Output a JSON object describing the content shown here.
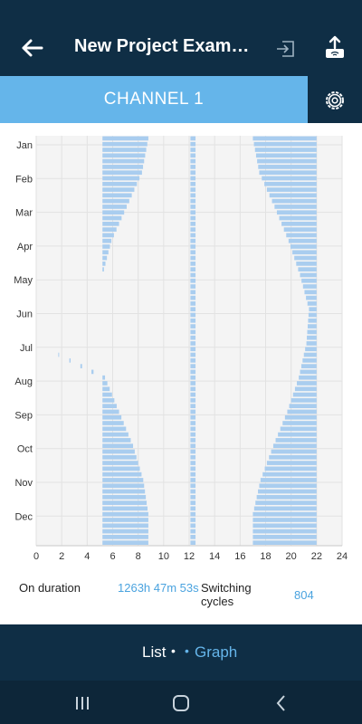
{
  "app": {
    "title": "New Project Exam…",
    "channel_label": "CHANNEL 1",
    "icons": {
      "back": "back-arrow-icon",
      "export": "export-icon",
      "upload": "upload-icon",
      "settings": "gear-icon"
    },
    "colors": {
      "dark": "#0f2e45",
      "accent": "#65b5ea",
      "bar": "#a9cdef"
    }
  },
  "chart_data": {
    "type": "bar",
    "orientation": "horizontal",
    "title": "",
    "xlabel": "",
    "ylabel": "",
    "xlim": [
      0,
      24
    ],
    "xticks": [
      0,
      2,
      4,
      6,
      8,
      10,
      12,
      14,
      16,
      18,
      20,
      22,
      24
    ],
    "categories": [
      "Jan",
      "Feb",
      "Mar",
      "Apr",
      "May",
      "Jun",
      "Jul",
      "Aug",
      "Sep",
      "Oct",
      "Nov",
      "Dec"
    ],
    "grid": true,
    "series": [
      {
        "start_hours": [
          5.2,
          5.2,
          5.2,
          5.2,
          5.2,
          0,
          0,
          5.2,
          5.2,
          5.2,
          5.2,
          5.2
        ],
        "end_hours": [
          8.8,
          8.3,
          7.1,
          5.9,
          5.2,
          0,
          0,
          5.4,
          6.5,
          7.6,
          8.4,
          8.8
        ]
      },
      {
        "start_hours": [
          12.1,
          12.1,
          12.1,
          12.1,
          12.1,
          12.1,
          12.1,
          12.1,
          12.1,
          12.1,
          12.1,
          12.1
        ],
        "end_hours": [
          12.5,
          12.5,
          12.5,
          12.5,
          12.5,
          12.5,
          12.5,
          12.5,
          12.5,
          12.5,
          12.5,
          12.5
        ]
      },
      {
        "start_hours": [
          17.0,
          17.5,
          18.7,
          19.8,
          20.7,
          21.4,
          21.2,
          20.6,
          19.7,
          18.6,
          17.6,
          17.0
        ],
        "end_hours": [
          22,
          22,
          22,
          22,
          22,
          22,
          22,
          22,
          22,
          22,
          22,
          22
        ]
      }
    ]
  },
  "stats": {
    "on_duration_label": "On duration",
    "on_duration_value": "1263h 47m 53s",
    "switching_label": "Switching cycles",
    "switching_value": "804"
  },
  "tabs": {
    "list": "List",
    "graph": "Graph",
    "dot": "•"
  },
  "nav": {
    "recents": "recents-icon",
    "home": "home-icon",
    "back": "nav-back-icon"
  }
}
